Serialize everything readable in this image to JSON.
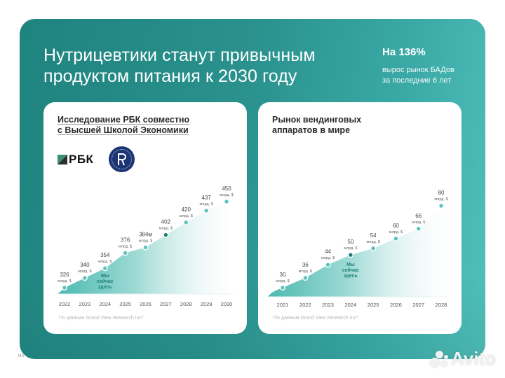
{
  "header": {
    "title_line1": "Нутрицевтики станут привычным",
    "title_line2": "продуктом питания к 2030 году",
    "stat_value": "На 136%",
    "stat_desc_line1": "вырос рынок БАДов",
    "stat_desc_line2": "за последние 6 лет"
  },
  "left_card": {
    "title_line1": "Исследование РБК совместно",
    "title_line2": "с Высшей Школой Экономики",
    "rbk_logo_text": "РБК",
    "hse_logo_letter": "Ѩ",
    "footnote": "По данным Grand View Research Inc*"
  },
  "right_card": {
    "title_line1": "Рынок вендинговых",
    "title_line2": "аппаратов в мире",
    "footnote": "По данным Grand View Research Inc*"
  },
  "watermark": {
    "brand": "Avito",
    "side_text": "Ил"
  },
  "colors": {
    "banner_dark": "#1f837e",
    "banner_light": "#52c1bd",
    "point": "#5bc2bc",
    "point_current": "#1e7f78",
    "current_label": "#1e7f78"
  },
  "chart_data": [
    {
      "type": "area",
      "title": "Исследование РБК совместно с Высшей Школой Экономики",
      "xlabel": "",
      "ylabel": "млрд. $",
      "categories": [
        "2022",
        "2023",
        "2024",
        "2025",
        "2026",
        "2027",
        "2028",
        "2029",
        "2030"
      ],
      "values": [
        326,
        340,
        354,
        376,
        384,
        402,
        420,
        437,
        450
      ],
      "point_labels": [
        "326",
        "340",
        "354",
        "376",
        "384м",
        "402",
        "420",
        "437",
        "450"
      ],
      "unit_label": "млрд. $",
      "annotation": {
        "text_lines": [
          "Мы",
          "сейчас",
          "здесь"
        ],
        "at": "2024"
      },
      "highlight_point": "2027",
      "grid": false,
      "source": "По данным Grand View Research Inc*"
    },
    {
      "type": "area",
      "title": "Рынок вендинговых аппаратов в мире",
      "xlabel": "",
      "ylabel": "млрд. $",
      "categories": [
        "2021",
        "2022",
        "2023",
        "2024",
        "2025",
        "2026",
        "2027",
        "2028"
      ],
      "values": [
        30,
        36,
        44,
        50,
        54,
        60,
        66,
        80
      ],
      "point_labels": [
        "30",
        "36",
        "44",
        "50",
        "54",
        "60",
        "66",
        "80"
      ],
      "unit_label": "млрд. $",
      "annotation": {
        "text_lines": [
          "Мы",
          "сейчас",
          "здесь"
        ],
        "at": "2024"
      },
      "highlight_point": "2024",
      "grid": false,
      "source": "По данным Grand View Research Inc*"
    }
  ]
}
